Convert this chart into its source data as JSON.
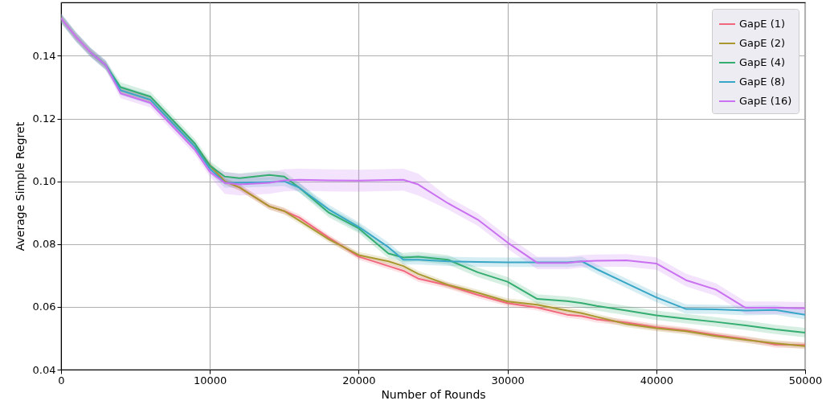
{
  "chart_data": {
    "type": "line",
    "xlabel": "Number of Rounds",
    "ylabel": "Average Simple Regret",
    "x": [
      0,
      1000,
      2000,
      3000,
      4000,
      6000,
      8000,
      9000,
      10000,
      11000,
      12000,
      14000,
      15000,
      16000,
      18000,
      20000,
      22000,
      23000,
      24000,
      26000,
      28000,
      30000,
      32000,
      34000,
      35000,
      36000,
      38000,
      40000,
      42000,
      44000,
      46000,
      48000,
      50000
    ],
    "series": [
      {
        "name": "GapE (1)",
        "color": "#f2677e",
        "values": [
          null,
          null,
          null,
          null,
          null,
          null,
          null,
          null,
          0.105,
          0.1,
          0.098,
          0.092,
          0.0905,
          0.0885,
          0.082,
          0.076,
          0.073,
          0.0715,
          0.069,
          0.0668,
          0.0638,
          0.0612,
          0.0598,
          0.0575,
          0.057,
          0.056,
          0.055,
          0.0535,
          0.0525,
          0.051,
          0.0497,
          0.048,
          0.0478
        ],
        "lower": [
          0.151,
          0.145,
          0.14,
          0.136,
          0.128,
          0.125,
          0.115,
          0.11,
          0.104,
          0.099,
          0.097,
          0.091,
          0.0895,
          0.0875,
          0.081,
          0.075,
          0.072,
          0.0705,
          0.068,
          0.0658,
          0.0628,
          0.0602,
          0.0588,
          0.0565,
          0.056,
          0.055,
          0.054,
          0.0525,
          0.0515,
          0.05,
          0.0487,
          0.047,
          0.0468
        ],
        "upper": [
          0.153,
          0.147,
          0.142,
          0.138,
          0.13,
          0.127,
          0.117,
          0.112,
          0.106,
          0.101,
          0.099,
          0.093,
          0.0915,
          0.0895,
          0.083,
          0.077,
          0.074,
          0.0725,
          0.07,
          0.0678,
          0.0648,
          0.0622,
          0.0608,
          0.0585,
          0.058,
          0.057,
          0.056,
          0.0545,
          0.0535,
          0.052,
          0.0507,
          0.049,
          0.0488
        ]
      },
      {
        "name": "GapE (2)",
        "color": "#a8982f",
        "values": [
          null,
          null,
          null,
          null,
          null,
          null,
          null,
          0.111,
          0.105,
          0.1,
          0.098,
          0.092,
          0.0905,
          0.0875,
          0.0815,
          0.0765,
          0.0745,
          0.073,
          0.0705,
          0.067,
          0.0645,
          0.0617,
          0.0607,
          0.0588,
          0.058,
          0.0568,
          0.0545,
          0.0532,
          0.0522,
          0.0507,
          0.0495,
          0.0484,
          0.0475
        ],
        "lower": [
          0.151,
          0.145,
          0.14,
          0.136,
          0.128,
          0.125,
          0.115,
          0.11,
          0.104,
          0.099,
          0.097,
          0.091,
          0.0895,
          0.0865,
          0.0805,
          0.0755,
          0.0735,
          0.072,
          0.0695,
          0.066,
          0.0635,
          0.0607,
          0.0597,
          0.0578,
          0.057,
          0.0558,
          0.0535,
          0.0522,
          0.0512,
          0.0497,
          0.0485,
          0.0474,
          0.0465
        ],
        "upper": [
          0.153,
          0.147,
          0.142,
          0.138,
          0.13,
          0.127,
          0.117,
          0.112,
          0.106,
          0.101,
          0.099,
          0.093,
          0.0915,
          0.0885,
          0.0825,
          0.0775,
          0.0755,
          0.074,
          0.0715,
          0.068,
          0.0655,
          0.0627,
          0.0617,
          0.0598,
          0.059,
          0.0578,
          0.0555,
          0.0542,
          0.0532,
          0.0517,
          0.0505,
          0.0494,
          0.0485
        ]
      },
      {
        "name": "GapE (4)",
        "color": "#34ad70",
        "values": [
          null,
          null,
          0.141,
          0.137,
          0.13,
          0.127,
          0.117,
          0.112,
          0.105,
          0.1015,
          0.101,
          0.102,
          0.1015,
          0.098,
          0.09,
          0.085,
          0.077,
          0.0757,
          0.076,
          0.075,
          0.071,
          0.068,
          0.0625,
          0.0618,
          0.0612,
          0.0603,
          0.0588,
          0.0573,
          0.0562,
          0.0552,
          0.0541,
          0.0528,
          0.0518
        ],
        "lower": [
          0.1505,
          0.1445,
          0.1395,
          0.1355,
          0.1285,
          0.1255,
          0.1155,
          0.1105,
          0.1035,
          0.1,
          0.0995,
          0.1005,
          0.1,
          0.0965,
          0.0885,
          0.0835,
          0.0755,
          0.0742,
          0.0745,
          0.0735,
          0.0695,
          0.0665,
          0.061,
          0.0603,
          0.0597,
          0.0588,
          0.0573,
          0.0558,
          0.0547,
          0.0537,
          0.0526,
          0.0513,
          0.0503
        ],
        "upper": [
          0.1535,
          0.1475,
          0.1425,
          0.1385,
          0.1315,
          0.1285,
          0.1185,
          0.1135,
          0.1065,
          0.103,
          0.1025,
          0.1035,
          0.103,
          0.0995,
          0.0915,
          0.0865,
          0.0785,
          0.0772,
          0.0775,
          0.0765,
          0.0725,
          0.0695,
          0.064,
          0.0633,
          0.0627,
          0.0618,
          0.0603,
          0.0588,
          0.0577,
          0.0567,
          0.0556,
          0.0543,
          0.0533
        ]
      },
      {
        "name": "GapE (8)",
        "color": "#37a6c7",
        "values": [
          null,
          null,
          0.141,
          0.137,
          0.129,
          0.126,
          0.116,
          0.111,
          0.104,
          0.0995,
          0.0995,
          0.0998,
          0.1,
          0.098,
          0.091,
          0.0855,
          0.079,
          0.075,
          0.075,
          0.0745,
          0.0743,
          0.0742,
          0.0742,
          0.0742,
          0.0745,
          0.072,
          0.0675,
          0.063,
          0.0593,
          0.0592,
          0.0588,
          0.059,
          0.0575
        ],
        "lower": [
          0.1505,
          0.1445,
          0.1395,
          0.1355,
          0.1275,
          0.1245,
          0.1145,
          0.1095,
          0.1025,
          0.098,
          0.098,
          0.0983,
          0.0985,
          0.0965,
          0.0895,
          0.084,
          0.0775,
          0.0735,
          0.0735,
          0.073,
          0.0728,
          0.0727,
          0.0727,
          0.0727,
          0.073,
          0.0705,
          0.066,
          0.0615,
          0.0578,
          0.0577,
          0.0573,
          0.0575,
          0.056
        ],
        "upper": [
          0.1535,
          0.1475,
          0.1425,
          0.1385,
          0.1305,
          0.1275,
          0.1175,
          0.1125,
          0.1055,
          0.101,
          0.101,
          0.1013,
          0.1015,
          0.0995,
          0.0925,
          0.087,
          0.0805,
          0.0765,
          0.0765,
          0.076,
          0.0758,
          0.0757,
          0.0757,
          0.0757,
          0.076,
          0.0735,
          0.069,
          0.0645,
          0.0608,
          0.0607,
          0.0603,
          0.0605,
          0.059
        ]
      },
      {
        "name": "GapE (16)",
        "color": "#c971f0",
        "values": [
          0.152,
          0.146,
          0.141,
          0.137,
          0.128,
          0.125,
          0.115,
          0.11,
          0.103,
          0.0995,
          0.099,
          0.0995,
          0.1003,
          0.1005,
          0.1003,
          0.1002,
          0.1004,
          0.1005,
          0.099,
          0.093,
          0.0878,
          0.0805,
          0.074,
          0.074,
          0.0745,
          0.0747,
          0.0748,
          0.0738,
          0.0685,
          0.0655,
          0.0597,
          0.0597,
          0.0595
        ],
        "lower": [
          0.1505,
          0.1445,
          0.1395,
          0.1355,
          0.1265,
          0.1235,
          0.1135,
          0.1085,
          0.1015,
          0.096,
          0.0955,
          0.096,
          0.0968,
          0.097,
          0.0968,
          0.0967,
          0.0969,
          0.097,
          0.0955,
          0.091,
          0.0858,
          0.0785,
          0.072,
          0.072,
          0.0725,
          0.0727,
          0.0728,
          0.0718,
          0.0665,
          0.0635,
          0.0577,
          0.0577,
          0.0575
        ],
        "upper": [
          0.1535,
          0.1475,
          0.1425,
          0.1385,
          0.1295,
          0.1265,
          0.1165,
          0.1115,
          0.1045,
          0.103,
          0.1025,
          0.103,
          0.1038,
          0.104,
          0.1038,
          0.1037,
          0.1039,
          0.104,
          0.1025,
          0.095,
          0.0898,
          0.0825,
          0.076,
          0.076,
          0.0765,
          0.0767,
          0.0768,
          0.0758,
          0.0705,
          0.0675,
          0.0617,
          0.0617,
          0.0615
        ]
      }
    ],
    "xlim": [
      0,
      50000
    ],
    "xticks": [
      0,
      10000,
      20000,
      30000,
      40000,
      50000
    ],
    "ylim": [
      0.04,
      0.157
    ],
    "yticks": [
      0.04,
      0.06,
      0.08,
      {
        "value": 0.1,
        "label": "0.10"
      },
      0.12,
      0.14
    ],
    "grid": true,
    "legend": "top right"
  }
}
